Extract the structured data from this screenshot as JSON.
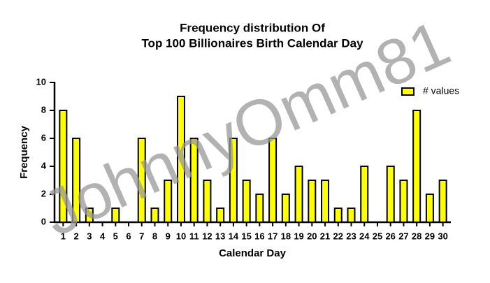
{
  "chart_data": {
    "type": "bar",
    "title": "Frequency distribution Of",
    "subtitle": "Top 100 Billionaires Birth Calendar Day",
    "x_label": "Calendar Day",
    "y_label": "Frequency",
    "watermark": "JohnnyOmm81",
    "categories": [
      "1",
      "2",
      "3",
      "4",
      "5",
      "6",
      "7",
      "8",
      "9",
      "10",
      "11",
      "12",
      "13",
      "14",
      "15",
      "16",
      "17",
      "18",
      "19",
      "20",
      "21",
      "22",
      "23",
      "24",
      "25",
      "26",
      "27",
      "28",
      "29",
      "30"
    ],
    "series": [
      {
        "name": "# values",
        "color": "#ffff00",
        "values": [
          8,
          6,
          1,
          0,
          1,
          0,
          6,
          1,
          3,
          9,
          6,
          3,
          1,
          6,
          3,
          2,
          6,
          2,
          4,
          3,
          3,
          1,
          1,
          4,
          0,
          4,
          3,
          8,
          2,
          3
        ]
      }
    ],
    "ylim": [
      0,
      10
    ],
    "yticks": [
      0,
      2,
      4,
      6,
      8,
      10
    ],
    "legend": "top-right",
    "grid": false
  }
}
